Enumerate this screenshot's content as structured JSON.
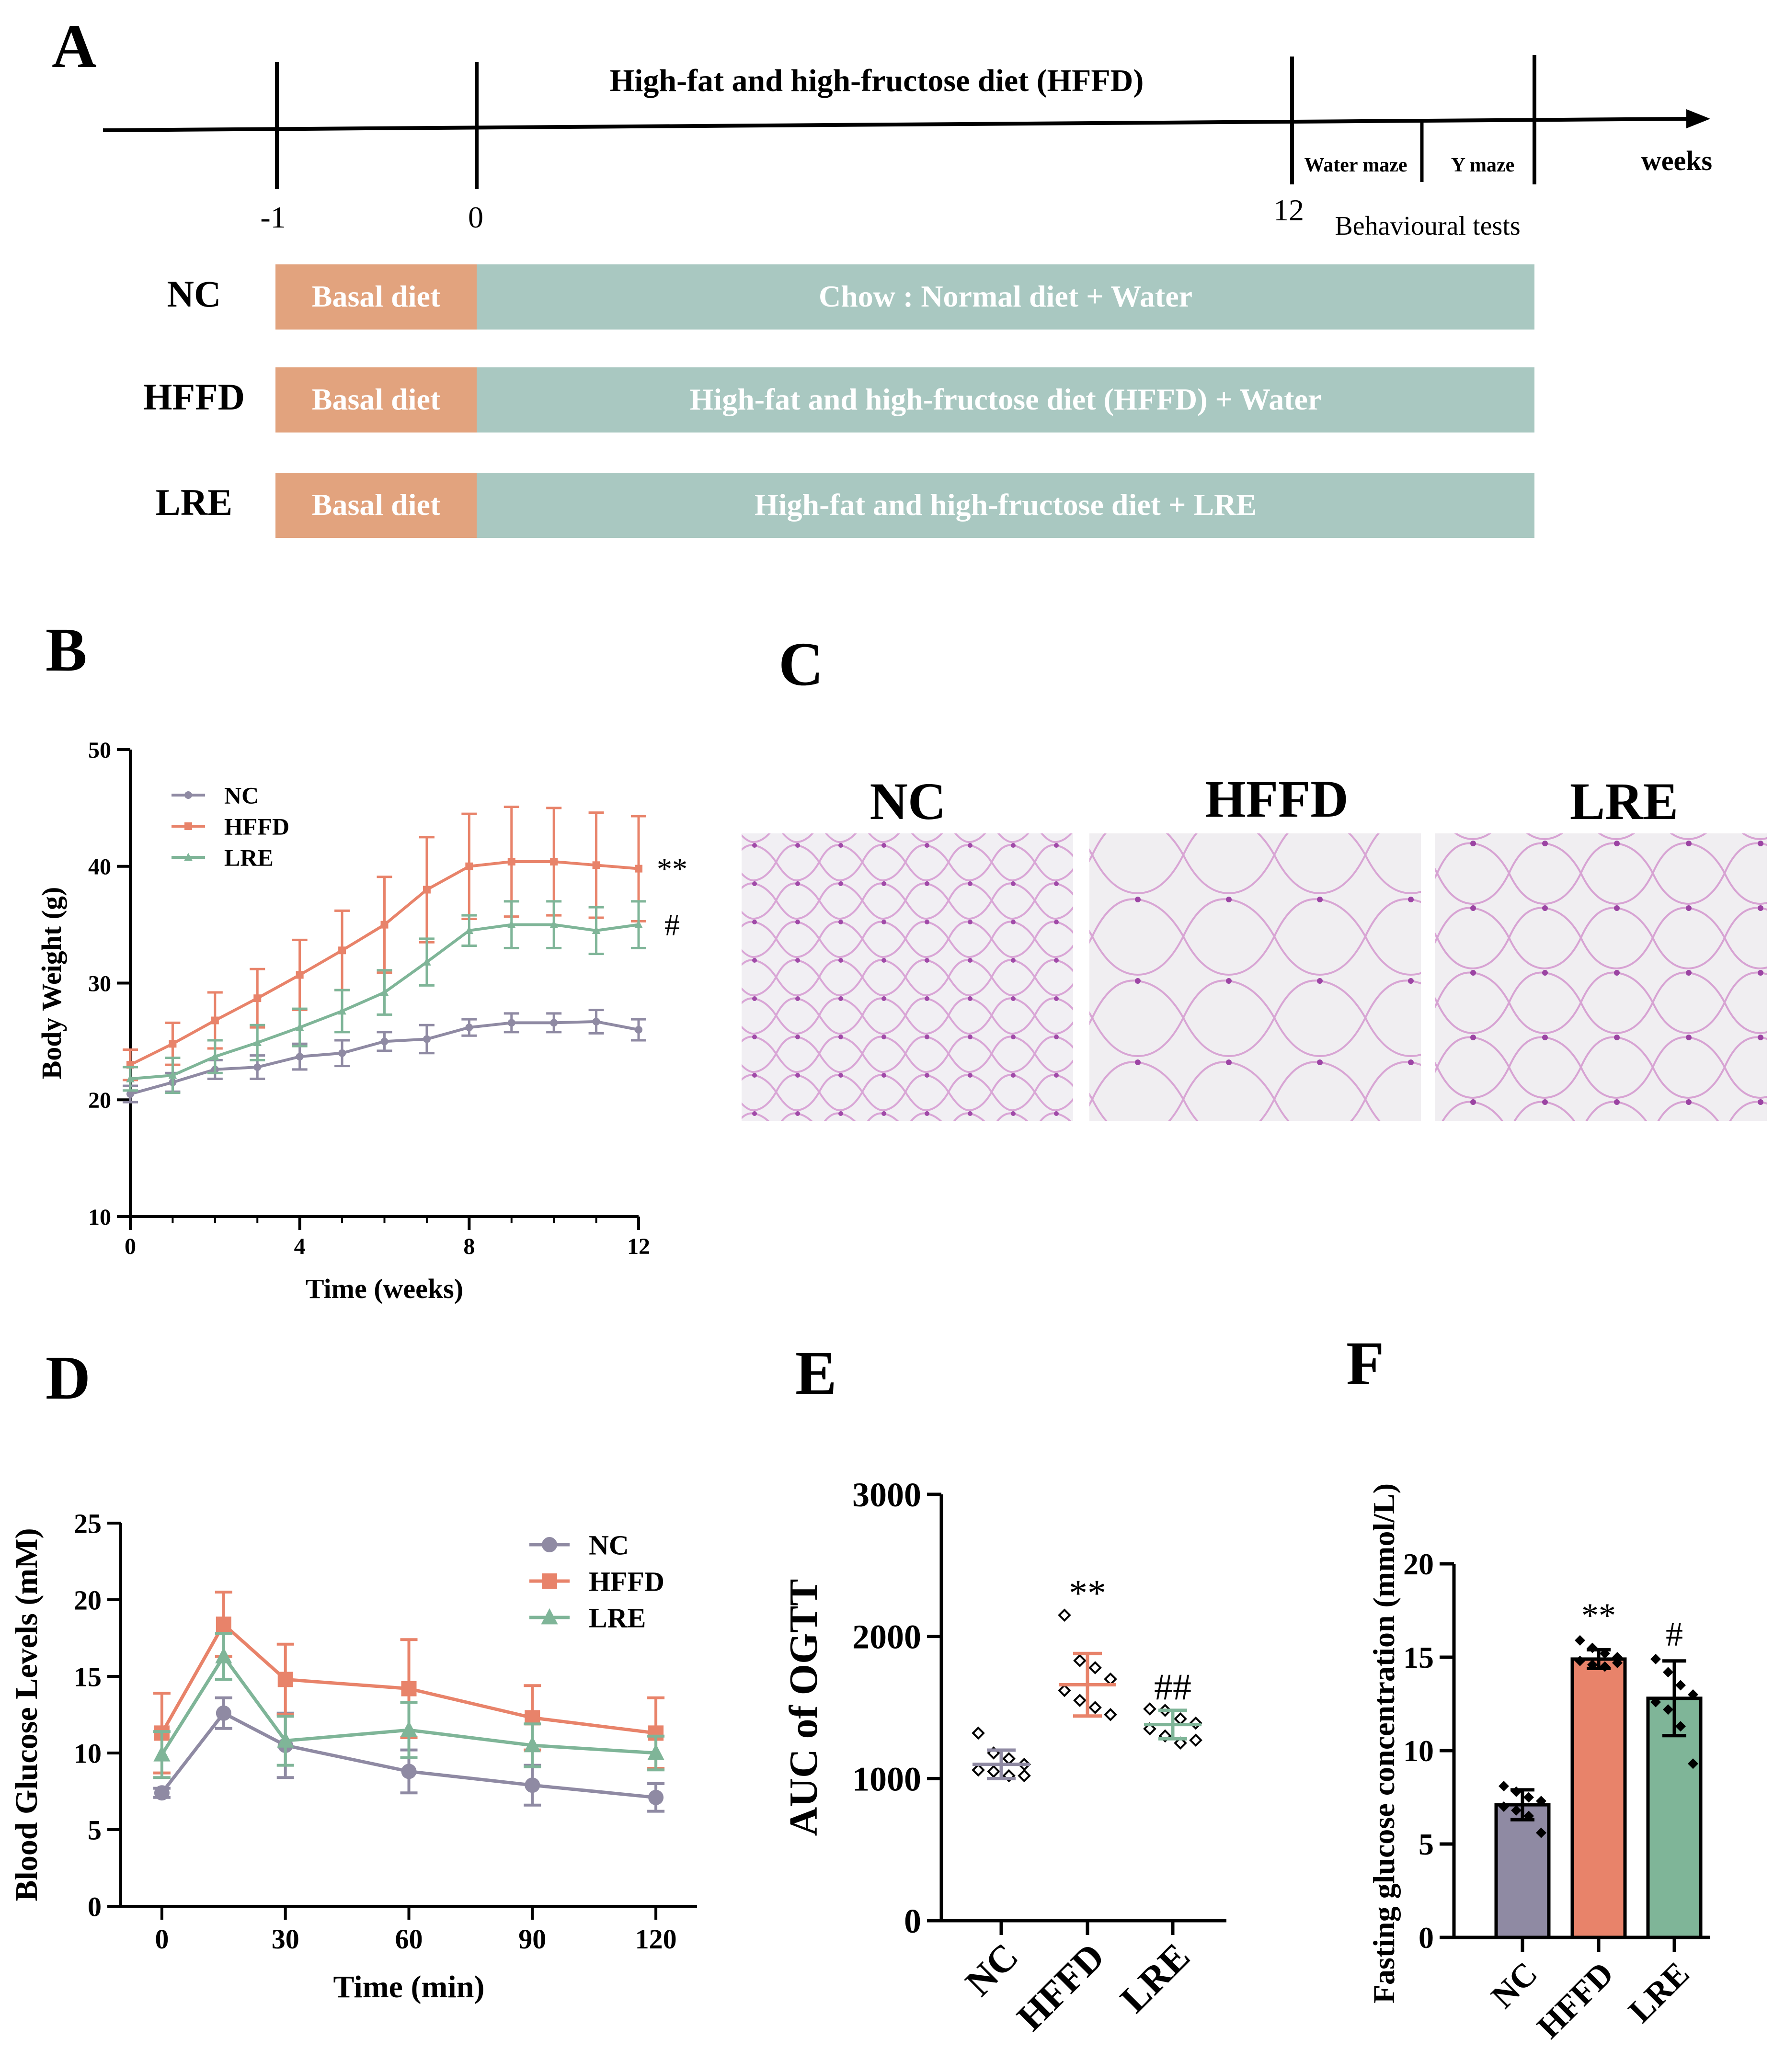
{
  "colors": {
    "nc": "#8f8aa3",
    "hffd": "#e8836a",
    "lre": "#7fb598",
    "basal": "#e2a37e",
    "diet": "#a9c8c1",
    "text": "#000000"
  },
  "panels": {
    "A": {
      "letter": "A"
    },
    "B": {
      "letter": "B"
    },
    "C": {
      "letter": "C"
    },
    "D": {
      "letter": "D"
    },
    "E": {
      "letter": "E"
    },
    "F": {
      "letter": "F"
    }
  },
  "timeline": {
    "title": "High-fat and high-fructose diet (HFFD)",
    "ticks": [
      "-1",
      "0",
      "12"
    ],
    "unit": "weeks",
    "water_maze": "Water maze",
    "y_maze": "Y maze",
    "behavioural": "Behavioural tests",
    "groups": [
      {
        "name": "NC",
        "basal": "Basal diet",
        "diet": "Chow : Normal diet + Water"
      },
      {
        "name": "HFFD",
        "basal": "Basal diet",
        "diet": "High-fat and high-fructose diet (HFFD) + Water"
      },
      {
        "name": "LRE",
        "basal": "Basal diet",
        "diet": "High-fat and high-fructose diet + LRE"
      }
    ]
  },
  "histology": {
    "labels": [
      "NC",
      "HFFD",
      "LRE"
    ]
  },
  "chart_data": [
    {
      "id": "B",
      "type": "line",
      "xlabel": "Time (weeks)",
      "ylabel": "Body Weight (g)",
      "xlim": [
        0,
        12
      ],
      "ylim": [
        10,
        50
      ],
      "xticks": [
        0,
        4,
        8,
        12
      ],
      "yticks": [
        10,
        20,
        30,
        40,
        50
      ],
      "x": [
        0,
        1,
        2,
        3,
        4,
        5,
        6,
        7,
        8,
        9,
        10,
        11,
        12
      ],
      "legend": [
        "NC",
        "HFFD",
        "LRE"
      ],
      "annotations": [
        {
          "text": "**",
          "series": "HFFD"
        },
        {
          "text": "#",
          "series": "LRE"
        }
      ],
      "series": [
        {
          "name": "NC",
          "values": [
            20.5,
            21.5,
            22.6,
            22.8,
            23.7,
            24.0,
            25.0,
            25.2,
            26.2,
            26.6,
            26.6,
            26.7,
            26.0
          ],
          "err": [
            0.7,
            0.8,
            0.8,
            1.0,
            1.1,
            1.1,
            0.8,
            1.2,
            0.7,
            0.8,
            0.8,
            1.0,
            0.9
          ]
        },
        {
          "name": "HFFD",
          "values": [
            23.0,
            24.8,
            26.8,
            28.7,
            30.7,
            32.8,
            35.0,
            38.0,
            40.0,
            40.4,
            40.4,
            40.1,
            39.8
          ],
          "err": [
            1.3,
            1.8,
            2.4,
            2.5,
            3.0,
            3.4,
            4.1,
            4.5,
            4.5,
            4.7,
            4.6,
            4.5,
            4.5
          ]
        },
        {
          "name": "LRE",
          "values": [
            21.8,
            22.1,
            23.7,
            24.9,
            26.2,
            27.6,
            29.2,
            31.8,
            34.5,
            35.0,
            35.0,
            34.5,
            35.0
          ],
          "err": [
            1.0,
            1.5,
            1.4,
            1.5,
            1.6,
            1.8,
            1.9,
            2.0,
            1.3,
            2.0,
            2.0,
            2.0,
            2.0
          ]
        }
      ]
    },
    {
      "id": "D",
      "type": "line",
      "xlabel": "Time (min)",
      "ylabel": "Blood Glucose Levels (mM)",
      "ylim": [
        0,
        25
      ],
      "xticks": [
        0,
        30,
        60,
        90,
        120
      ],
      "yticks": [
        0,
        5,
        10,
        15,
        20,
        25
      ],
      "x": [
        0,
        15,
        30,
        60,
        90,
        120
      ],
      "legend": [
        "NC",
        "HFFD",
        "LRE"
      ],
      "series": [
        {
          "name": "NC",
          "values": [
            7.4,
            12.6,
            10.5,
            8.8,
            7.9,
            7.1
          ],
          "err": [
            0.3,
            1.0,
            2.1,
            1.4,
            1.3,
            0.9
          ]
        },
        {
          "name": "HFFD",
          "values": [
            11.3,
            18.4,
            14.8,
            14.2,
            12.3,
            11.3
          ],
          "err": [
            2.6,
            2.1,
            2.3,
            3.2,
            2.1,
            2.3
          ]
        },
        {
          "name": "LRE",
          "values": [
            9.9,
            16.3,
            10.8,
            11.5,
            10.5,
            10.0
          ],
          "err": [
            1.5,
            1.5,
            1.6,
            1.8,
            1.4,
            1.1
          ]
        }
      ]
    },
    {
      "id": "E",
      "type": "scatter",
      "ylabel": "AUC of OGTT",
      "categories": [
        "NC",
        "HFFD",
        "LRE"
      ],
      "ylim": [
        0,
        3000
      ],
      "yticks": [
        0,
        1000,
        2000,
        3000
      ],
      "series": [
        {
          "name": "NC",
          "mean": 1100,
          "sd": 100,
          "points": [
            1320,
            1180,
            1140,
            1100,
            1060,
            1050,
            1020,
            1020
          ],
          "label": ""
        },
        {
          "name": "HFFD",
          "mean": 1660,
          "sd": 220,
          "points": [
            2150,
            1830,
            1780,
            1700,
            1620,
            1550,
            1500,
            1450
          ],
          "label": "**"
        },
        {
          "name": "LRE",
          "mean": 1380,
          "sd": 100,
          "points": [
            1490,
            1480,
            1420,
            1390,
            1350,
            1300,
            1250,
            1270
          ],
          "label": "##"
        }
      ]
    },
    {
      "id": "F",
      "type": "bar",
      "ylabel": "Fasting glucose concentration (mmol/L)",
      "categories": [
        "NC",
        "HFFD",
        "LRE"
      ],
      "ylim": [
        0,
        20
      ],
      "yticks": [
        0,
        5,
        10,
        15,
        20
      ],
      "series": [
        {
          "name": "NC",
          "value": 7.1,
          "err": 0.8,
          "points": [
            8.1,
            7.8,
            7.5,
            7.3,
            7.0,
            6.8,
            6.5,
            5.6
          ],
          "label": ""
        },
        {
          "name": "HFFD",
          "value": 14.9,
          "err": 0.5,
          "points": [
            15.9,
            15.5,
            15.2,
            15.0,
            14.8,
            14.6,
            14.5,
            14.7
          ],
          "label": "**"
        },
        {
          "name": "LRE",
          "value": 12.8,
          "err": 2.0,
          "points": [
            14.9,
            14.2,
            13.5,
            13.0,
            12.6,
            12.2,
            11.3,
            9.3
          ],
          "label": "#"
        }
      ]
    }
  ]
}
